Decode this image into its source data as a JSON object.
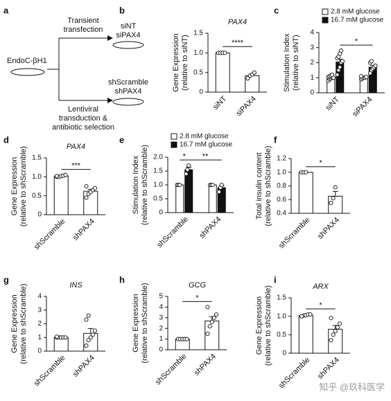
{
  "diagram": {
    "panel": "a",
    "source": "EndoC-βH1",
    "top_method": [
      "Transient",
      "transfection"
    ],
    "top_groups": [
      "siNT",
      "siPAX4"
    ],
    "bottom_groups": [
      "shScramble",
      "shPAX4"
    ],
    "bottom_method": [
      "Lentiviral",
      "transduction &",
      "antibiotic selection"
    ]
  },
  "watermark": "知乎 @玖科医学",
  "chart_data": [
    {
      "panel": "b",
      "type": "bar",
      "title": "PAX4",
      "ylabel": [
        "Gene Expression",
        "(relative to siNT)"
      ],
      "categories": [
        "siNT",
        "siPAX4"
      ],
      "color": "#ffffff",
      "values": [
        1.0,
        0.42
      ],
      "errors": [
        0.02,
        0.04
      ],
      "points": [
        [
          1,
          1,
          1,
          1
        ],
        [
          0.35,
          0.42,
          0.45,
          0.5
        ]
      ],
      "ylim": [
        0,
        1.5
      ],
      "yticks": [
        0,
        0.5,
        {
          "value": 1,
          "label": "1.0"
        },
        1.5
      ],
      "annotations": [
        {
          "text": "****",
          "between": [
            0,
            1
          ]
        }
      ]
    },
    {
      "panel": "c",
      "type": "grouped_bar",
      "ylabel": [
        "Stimulation Index",
        "(relative to siNT)"
      ],
      "categories": [
        "siNT",
        "siPAX4"
      ],
      "series": [
        {
          "name": "2.8 mM glucose",
          "color": "#ffffff",
          "values": [
            1.0,
            1.0
          ],
          "errors": [
            0.05,
            0.04
          ],
          "points": [
            [
              0.8,
              0.9,
              0.95,
              1.0,
              1.0,
              1.05,
              1.1,
              1.15,
              1.2
            ],
            [
              0.9,
              0.95,
              1.0,
              1.0,
              1.05,
              1.1
            ]
          ]
        },
        {
          "name": "16.7 mM glucose",
          "color": "#111111",
          "values": [
            2.05,
            1.7
          ],
          "errors": [
            0.18,
            0.12
          ],
          "points": [
            [
              1.2,
              1.5,
              1.7,
              2.0,
              2.1,
              2.3,
              2.4,
              2.6,
              2.8
            ],
            [
              1.3,
              1.5,
              1.6,
              1.7,
              1.8,
              2.0,
              2.1
            ]
          ]
        }
      ],
      "ylim": [
        0,
        4
      ],
      "yticks": [
        0,
        1,
        2,
        3,
        4
      ],
      "annotations": [
        {
          "text": "*",
          "between": [
            [
              1,
              0
            ],
            [
              1,
              1
            ]
          ]
        }
      ]
    },
    {
      "panel": "d",
      "type": "bar",
      "title": "PAX4",
      "ylabel": [
        "Gene Expression",
        "(relative to shScramble)"
      ],
      "categories": [
        "shScramble",
        "shPAX4"
      ],
      "color": "#ffffff",
      "values": [
        1.02,
        0.62
      ],
      "errors": [
        0.01,
        0.05
      ],
      "points": [
        [
          1.0,
          1.0,
          1.02,
          1.03,
          1.05,
          1.02
        ],
        [
          0.45,
          0.55,
          0.6,
          0.65,
          0.7,
          0.75
        ]
      ],
      "ylim": [
        0,
        1.5
      ],
      "yticks": [
        0,
        0.5,
        {
          "value": 1,
          "label": "1.0"
        },
        1.5
      ],
      "annotations": [
        {
          "text": "***",
          "between": [
            0,
            1
          ]
        }
      ]
    },
    {
      "panel": "e",
      "type": "grouped_bar",
      "ylabel": [
        "Stimulation Index",
        "(relative to shScramble)"
      ],
      "categories": [
        "shScramble",
        "shPAX4"
      ],
      "series": [
        {
          "name": "2.8 mM glucose",
          "color": "#ffffff",
          "values": [
            1.0,
            1.0
          ],
          "errors": [
            0,
            0
          ],
          "points": [
            [
              1,
              1,
              1
            ],
            [
              1,
              1,
              1
            ]
          ]
        },
        {
          "name": "16.7 mM glucose",
          "color": "#111111",
          "values": [
            1.55,
            0.9
          ],
          "errors": [
            0.09,
            0.07
          ],
          "points": [
            [
              1.4,
              1.55,
              1.7
            ],
            [
              0.75,
              0.9,
              1.0
            ]
          ]
        }
      ],
      "ylim": [
        0,
        2
      ],
      "yticks": [
        0,
        0.5,
        {
          "value": 1,
          "label": "1.0"
        },
        1.5,
        {
          "value": 2,
          "label": "2.0"
        }
      ],
      "annotations": [
        {
          "text": "*",
          "between": [
            [
              0,
              0
            ],
            [
              1,
              0
            ]
          ]
        },
        {
          "text": "**",
          "between": [
            [
              1,
              0
            ],
            [
              1,
              1
            ]
          ]
        }
      ]
    },
    {
      "panel": "f",
      "type": "bar",
      "ylabel": [
        "Total insulin content",
        "(relative to shScramble)"
      ],
      "categories": [
        "shScramble",
        "shPAX4"
      ],
      "color": "#ffffff",
      "values": [
        1.0,
        0.65
      ],
      "errors": [
        0,
        0.07
      ],
      "points": [
        [
          1,
          1,
          1
        ],
        [
          0.55,
          0.62,
          0.78
        ]
      ],
      "ylim": [
        0.4,
        1.2
      ],
      "yticks": [
        0.4,
        0.6,
        0.8,
        {
          "value": 1,
          "label": "1.0"
        },
        1.2
      ],
      "annotations": [
        {
          "text": "*",
          "between": [
            0,
            1
          ]
        }
      ]
    },
    {
      "panel": "g",
      "type": "bar",
      "title": "INS",
      "ylabel": [
        "Gene Expression",
        "(relative to shScramble)"
      ],
      "categories": [
        "shScramble",
        "shPAX4"
      ],
      "color": "#ffffff",
      "values": [
        1.0,
        1.3
      ],
      "errors": [
        0.02,
        0.35
      ],
      "points": [
        [
          1,
          1,
          1,
          1,
          1,
          1.05
        ],
        [
          0.4,
          0.8,
          1.0,
          1.2,
          1.5,
          2.3,
          2.6
        ]
      ],
      "ylim": [
        0,
        4
      ],
      "yticks": [
        0,
        1,
        2,
        3,
        4
      ]
    },
    {
      "panel": "h",
      "type": "bar",
      "title": "GCG",
      "ylabel": [
        "Gene Expression",
        "(relative to shScramble)"
      ],
      "categories": [
        "shScramble",
        "shPAX4"
      ],
      "color": "#ffffff",
      "values": [
        1.0,
        2.7
      ],
      "errors": [
        0.05,
        0.4
      ],
      "points": [
        [
          1,
          1,
          1,
          1,
          1
        ],
        [
          1.5,
          2.2,
          2.6,
          3.0,
          3.3,
          4.0
        ]
      ],
      "ylim": [
        0,
        5
      ],
      "yticks": [
        0,
        1,
        2,
        3,
        4,
        5
      ],
      "annotations": [
        {
          "text": "*",
          "between": [
            0,
            1
          ]
        }
      ]
    },
    {
      "panel": "i",
      "type": "bar",
      "title": "ARX",
      "ylabel": [
        "Gene Expression",
        "(relative to shScramble)"
      ],
      "categories": [
        "shScramble",
        "shPAX4"
      ],
      "color": "#ffffff",
      "values": [
        1.02,
        0.65
      ],
      "errors": [
        0.02,
        0.1
      ],
      "points": [
        [
          1.0,
          1.02,
          1.03,
          1.05,
          1.05,
          1.0
        ],
        [
          0.35,
          0.5,
          0.6,
          0.7,
          0.8,
          0.95
        ]
      ],
      "ylim": [
        0,
        1.5
      ],
      "yticks": [
        0,
        0.5,
        {
          "value": 1,
          "label": "1.0"
        },
        1.5
      ],
      "annotations": [
        {
          "text": "*",
          "between": [
            0,
            1
          ]
        }
      ]
    }
  ]
}
